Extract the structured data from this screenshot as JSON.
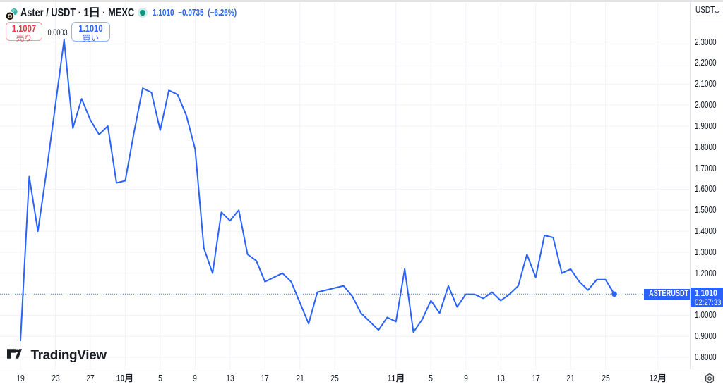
{
  "header": {
    "symbol_title": "Aster / USDT · 1日 · MEXC",
    "market_status": "open",
    "last_price": "1.1010",
    "change": "−0.0735",
    "change_pct": "(−6.26%)",
    "sell": {
      "price": "1.1007",
      "label": "売り"
    },
    "spread": "0.0003",
    "buy": {
      "price": "1.1010",
      "label": "買い"
    }
  },
  "price_axis": {
    "currency_label": "USDT",
    "tick_labels": [
      "2.3000",
      "2.2000",
      "2.1000",
      "2.0000",
      "1.9000",
      "1.8000",
      "1.7000",
      "1.6000",
      "1.5000",
      "1.4000",
      "1.3000",
      "1.2000",
      "1.0000",
      "0.9000",
      "0.8000"
    ],
    "tick_values": [
      2.3,
      2.2,
      2.1,
      2.0,
      1.9,
      1.8,
      1.7,
      1.6,
      1.5,
      1.4,
      1.3,
      1.2,
      1.0,
      0.9,
      0.8
    ],
    "last_price_label": "1.1010",
    "countdown": "02:27:33",
    "floating_series_label": "ASTERUSDT"
  },
  "time_axis": {
    "tick_labels": [
      {
        "text": "19",
        "day_index": 0,
        "bold": false
      },
      {
        "text": "23",
        "day_index": 4,
        "bold": false
      },
      {
        "text": "27",
        "day_index": 8,
        "bold": false
      },
      {
        "text": "10月",
        "day_index": 12,
        "bold": true
      },
      {
        "text": "5",
        "day_index": 16,
        "bold": false
      },
      {
        "text": "9",
        "day_index": 20,
        "bold": false
      },
      {
        "text": "13",
        "day_index": 24,
        "bold": false
      },
      {
        "text": "17",
        "day_index": 28,
        "bold": false
      },
      {
        "text": "21",
        "day_index": 32,
        "bold": false
      },
      {
        "text": "25",
        "day_index": 36,
        "bold": false
      },
      {
        "text": "11月",
        "day_index": 43,
        "bold": true
      },
      {
        "text": "5",
        "day_index": 47,
        "bold": false
      },
      {
        "text": "9",
        "day_index": 51,
        "bold": false
      },
      {
        "text": "13",
        "day_index": 55,
        "bold": false
      },
      {
        "text": "17",
        "day_index": 59,
        "bold": false
      },
      {
        "text": "21",
        "day_index": 63,
        "bold": false
      },
      {
        "text": "25",
        "day_index": 67,
        "bold": false
      },
      {
        "text": "12月",
        "day_index": 73,
        "bold": true
      }
    ]
  },
  "watermark": {
    "brand": "TradingView"
  },
  "chart_data": {
    "type": "line",
    "title": "Aster / USDT · 1日 · MEXC",
    "series_name": "ASTERUSDT",
    "exchange": "MEXC",
    "interval": "1日",
    "color": "#2962FF",
    "grid": true,
    "legend_position": "top-left",
    "ylim": [
      0.8,
      2.3
    ],
    "y_tick_step": 0.1,
    "dates": [
      "09-19",
      "09-20",
      "09-21",
      "09-22",
      "09-23",
      "09-24",
      "09-25",
      "09-26",
      "09-27",
      "09-28",
      "09-29",
      "09-30",
      "10-01",
      "10-02",
      "10-03",
      "10-04",
      "10-05",
      "10-06",
      "10-07",
      "10-08",
      "10-09",
      "10-10",
      "10-11",
      "10-12",
      "10-13",
      "10-14",
      "10-15",
      "10-16",
      "10-17",
      "10-18",
      "10-19",
      "10-20",
      "10-21",
      "10-22",
      "10-23",
      "10-24",
      "10-25",
      "10-26",
      "10-27",
      "10-28",
      "10-29",
      "10-30",
      "10-31",
      "11-01",
      "11-02",
      "11-03",
      "11-04",
      "11-05",
      "11-06",
      "11-07",
      "11-08",
      "11-09",
      "11-10",
      "11-11",
      "11-12",
      "11-13",
      "11-14",
      "11-15",
      "11-16",
      "11-17",
      "11-18",
      "11-19",
      "11-20",
      "11-21",
      "11-22",
      "11-23",
      "11-24",
      "11-25",
      "11-26"
    ],
    "values": [
      0.88,
      1.66,
      1.4,
      1.69,
      2.0,
      2.31,
      1.89,
      2.03,
      1.93,
      1.86,
      1.9,
      1.63,
      1.64,
      1.87,
      2.08,
      2.06,
      1.88,
      2.07,
      2.05,
      1.95,
      1.79,
      1.32,
      1.2,
      1.49,
      1.45,
      1.5,
      1.29,
      1.26,
      1.16,
      1.18,
      1.2,
      1.16,
      1.06,
      0.96,
      1.11,
      1.12,
      1.13,
      1.14,
      1.09,
      1.01,
      0.97,
      0.93,
      0.99,
      0.97,
      1.22,
      0.92,
      0.98,
      1.07,
      1.01,
      1.14,
      1.04,
      1.1,
      1.1,
      1.08,
      1.11,
      1.07,
      1.1,
      1.14,
      1.29,
      1.18,
      1.38,
      1.37,
      1.2,
      1.22,
      1.16,
      1.12,
      1.17,
      1.17,
      1.101
    ],
    "last_value": 1.101,
    "last_price_line": "dotted"
  }
}
